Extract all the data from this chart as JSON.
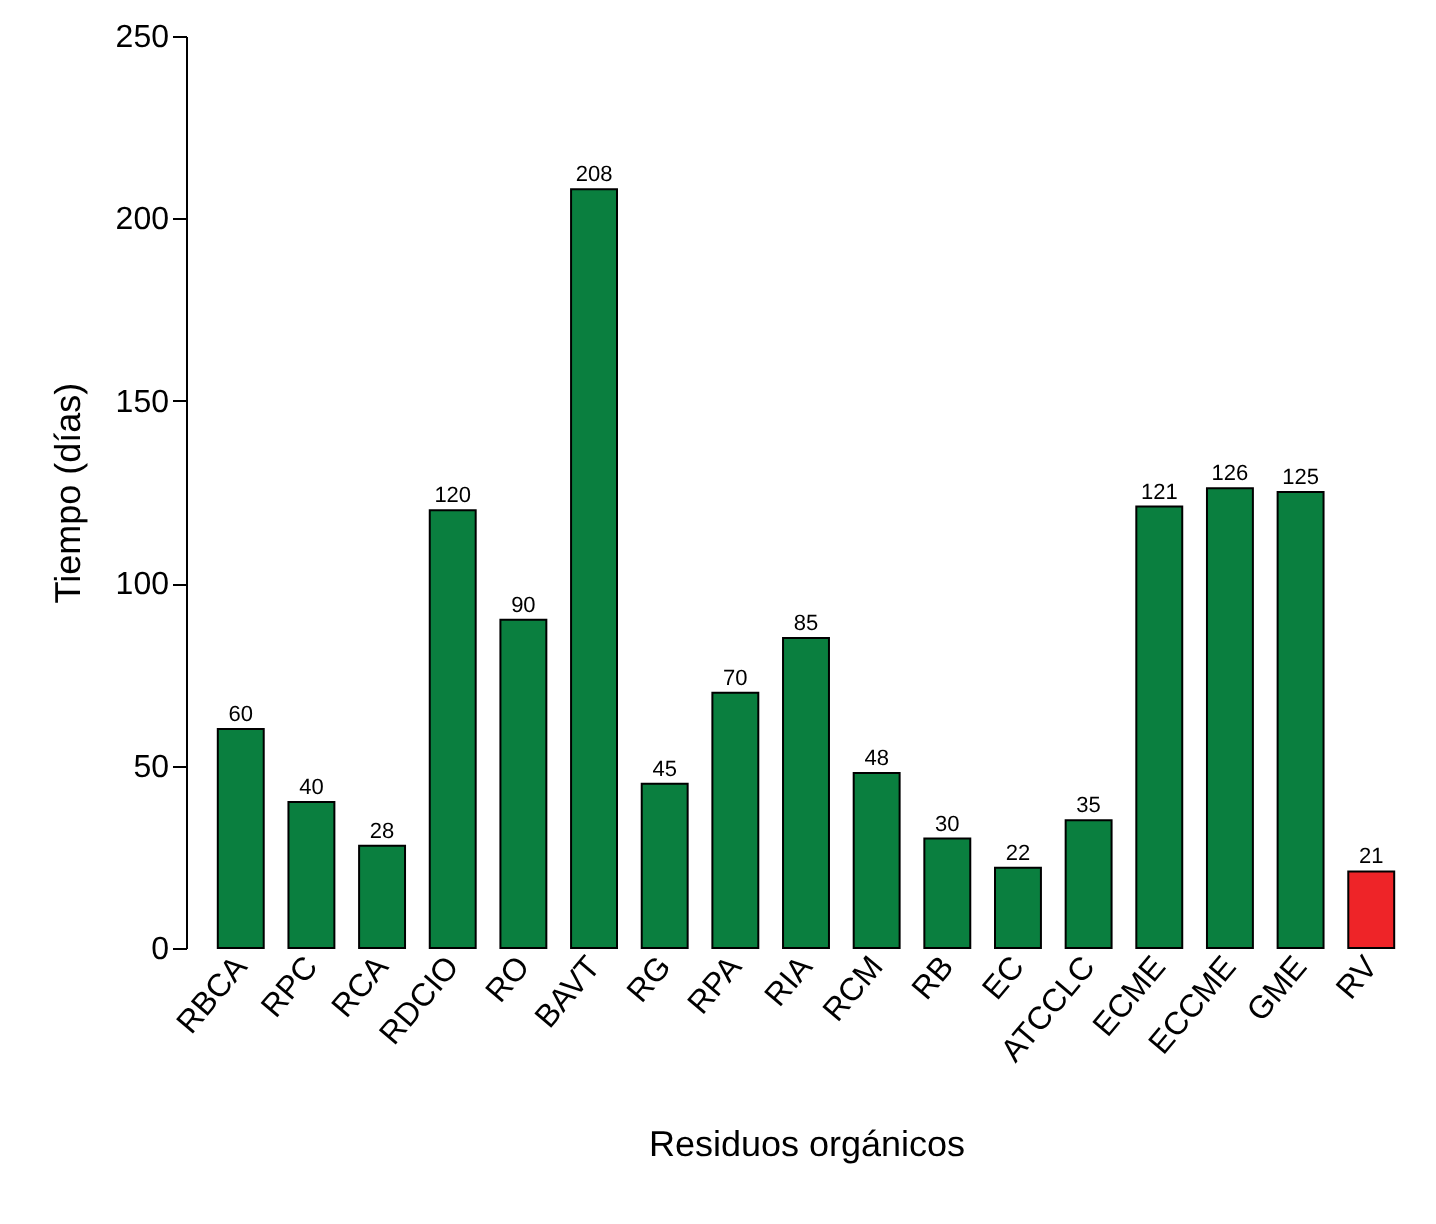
{
  "chart_data": {
    "type": "bar",
    "xlabel": "Residuos orgánicos",
    "ylabel": "Tiempo (días)",
    "categories": [
      "RBCA",
      "RPC",
      "RCA",
      "RDCIO",
      "RO",
      "BAVT",
      "RG",
      "RPA",
      "RIA",
      "RCM",
      "RB",
      "EC",
      "ATCCLC",
      "ECME",
      "ECCME",
      "GME",
      "RV"
    ],
    "values": [
      60,
      40,
      28,
      120,
      90,
      208,
      45,
      70,
      85,
      48,
      30,
      22,
      35,
      121,
      126,
      125,
      21
    ],
    "colors": [
      "#0a7f3f",
      "#0a7f3f",
      "#0a7f3f",
      "#0a7f3f",
      "#0a7f3f",
      "#0a7f3f",
      "#0a7f3f",
      "#0a7f3f",
      "#0a7f3f",
      "#0a7f3f",
      "#0a7f3f",
      "#0a7f3f",
      "#0a7f3f",
      "#0a7f3f",
      "#0a7f3f",
      "#0a7f3f",
      "#ee2428"
    ],
    "ylim": [
      0,
      250
    ],
    "yticks": [
      0,
      50,
      100,
      150,
      200,
      250
    ],
    "data_labels": true,
    "grid": false
  }
}
